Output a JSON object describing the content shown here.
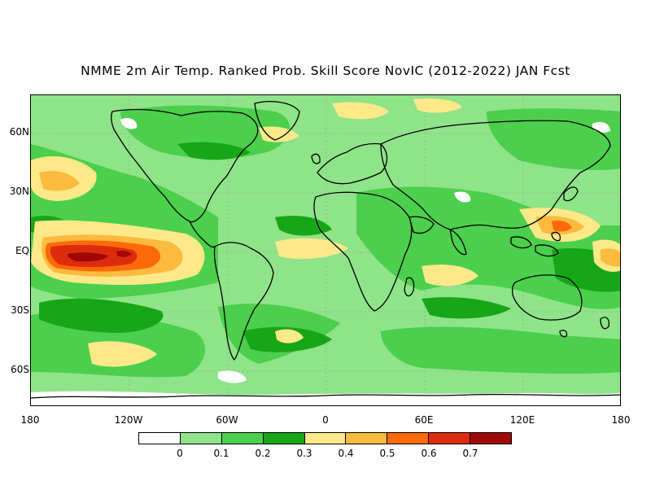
{
  "title": "NMME 2m Air Temp. Ranked Prob. Skill Score NovIC (2012-2022) JAN Fcst",
  "lat_labels": [
    "60N",
    "30N",
    "EQ",
    "30S",
    "60S"
  ],
  "lon_labels": [
    "180",
    "120W",
    "60W",
    "0",
    "60E",
    "120E",
    "180"
  ],
  "colorbar": {
    "colors": [
      "#ffffff",
      "#8fe389",
      "#4ccf4c",
      "#17a617",
      "#fde88a",
      "#fcba3f",
      "#fd6a0a",
      "#dd2c0d",
      "#9f0708"
    ],
    "labels": [
      "0",
      "0.1",
      "0.2",
      "0.3",
      "0.4",
      "0.5",
      "0.6",
      "0.7"
    ]
  },
  "map": {
    "background_color": "#8fe389",
    "coastline_color": "#000000"
  }
}
